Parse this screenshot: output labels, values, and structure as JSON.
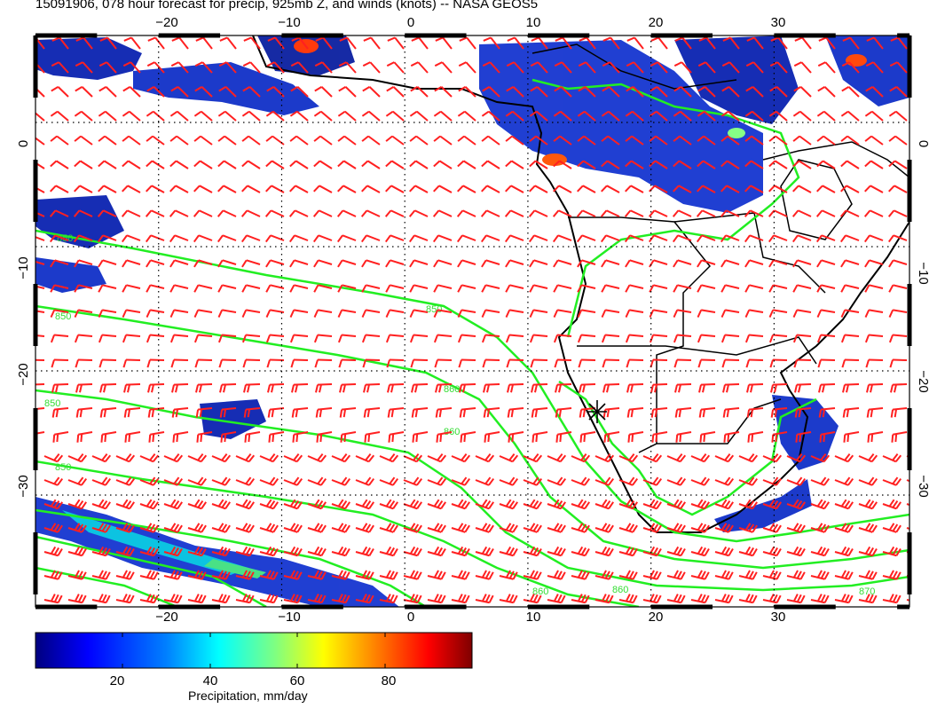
{
  "title": "15091906, 078 hour forecast for precip, 925mb Z, and winds (knots) -- NASA GEOS5",
  "map": {
    "lon_ticks": [
      "−20",
      "−10",
      "0",
      "10",
      "20",
      "30"
    ],
    "lat_ticks": [
      "0",
      "−10",
      "−20",
      "−30"
    ],
    "lon_range": [
      -30,
      41
    ],
    "lat_range": [
      7,
      -39
    ],
    "contour_labels": [
      "850",
      "850",
      "850",
      "850",
      "850",
      "860",
      "860",
      "860",
      "860",
      "870"
    ],
    "colors": {
      "wind_barbs": "#ff2020",
      "contours": "#22ee22",
      "coastline": "#000000",
      "grid": "#000000"
    },
    "wind_units": "knots",
    "contour_field": "925mb Z",
    "marker": "asterisk"
  },
  "colorbar": {
    "ticks": [
      "20",
      "40",
      "60",
      "80"
    ],
    "label": "Precipitation, mm/day",
    "range": [
      0,
      100
    ],
    "stops": [
      "#00007f",
      "#0000ff",
      "#0080ff",
      "#00ffff",
      "#80ff80",
      "#ffff00",
      "#ff8000",
      "#ff0000",
      "#7f0000"
    ]
  }
}
